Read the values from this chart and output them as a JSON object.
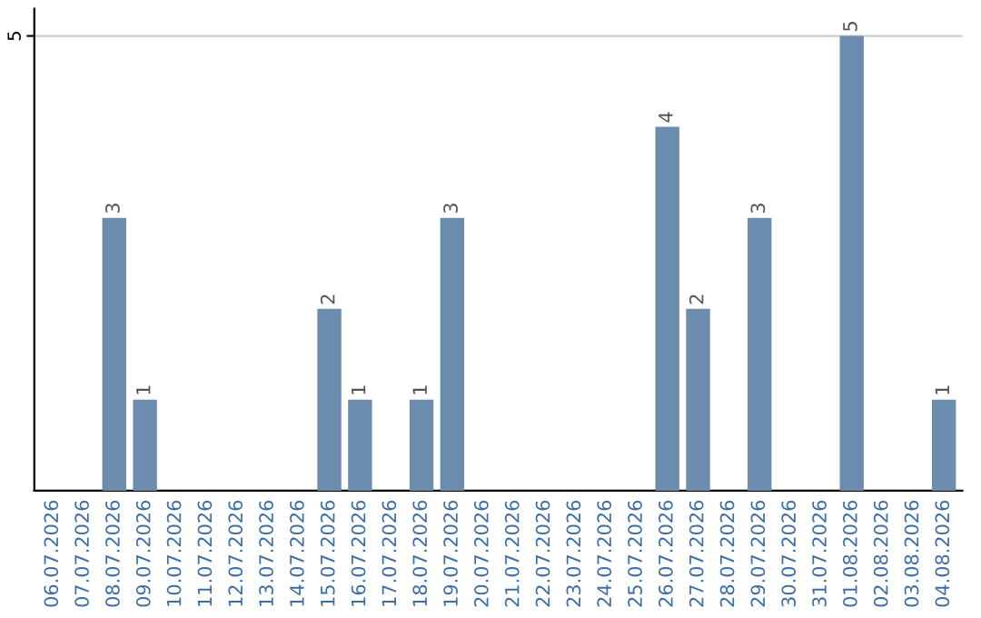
{
  "chart_data": {
    "type": "bar",
    "categories": [
      "06.07.2026",
      "07.07.2026",
      "08.07.2026",
      "09.07.2026",
      "10.07.2026",
      "11.07.2026",
      "12.07.2026",
      "13.07.2026",
      "14.07.2026",
      "15.07.2026",
      "16.07.2026",
      "17.07.2026",
      "18.07.2026",
      "19.07.2026",
      "20.07.2026",
      "21.07.2026",
      "22.07.2026",
      "23.07.2026",
      "24.07.2026",
      "25.07.2026",
      "26.07.2026",
      "27.07.2026",
      "28.07.2026",
      "29.07.2026",
      "30.07.2026",
      "31.07.2026",
      "01.08.2026",
      "02.08.2026",
      "03.08.2026",
      "04.08.2026"
    ],
    "values": [
      0,
      0,
      3,
      1,
      0,
      0,
      0,
      0,
      0,
      2,
      1,
      0,
      1,
      3,
      0,
      0,
      0,
      0,
      0,
      0,
      4,
      2,
      0,
      3,
      0,
      0,
      5,
      0,
      0,
      1
    ],
    "value_labels": [
      null,
      null,
      "3",
      "1",
      null,
      null,
      null,
      null,
      null,
      "2",
      "1",
      null,
      "1",
      "3",
      null,
      null,
      null,
      null,
      null,
      null,
      "4",
      "2",
      null,
      "3",
      null,
      null,
      "5",
      null,
      null,
      "1"
    ],
    "color": "#6b8cad",
    "ylim": [
      0,
      5.3
    ],
    "yticks": [
      5
    ],
    "grid": "y"
  }
}
